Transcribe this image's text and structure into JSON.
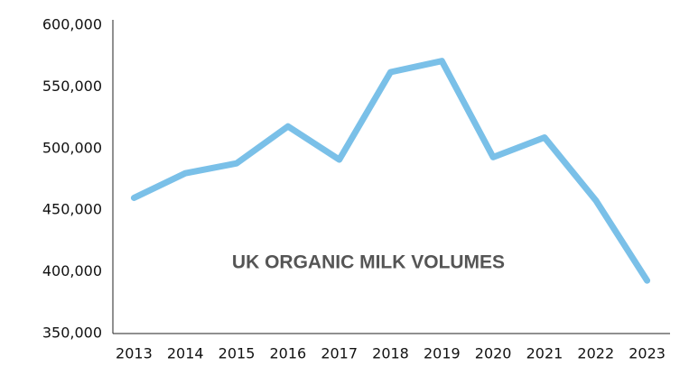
{
  "chart_data": {
    "type": "line",
    "title": "UK ORGANIC MILK VOLUMES",
    "categories": [
      "2013",
      "2014",
      "2015",
      "2016",
      "2017",
      "2018",
      "2019",
      "2020",
      "2021",
      "2022",
      "2023"
    ],
    "series": [
      {
        "color": "#7ac0e8",
        "values": [
          460000,
          480000,
          488000,
          518000,
          491000,
          562000,
          571000,
          493000,
          509000,
          458000,
          393000
        ]
      }
    ],
    "ylim": [
      350000,
      600000
    ],
    "yticks": [
      {
        "value": 350000,
        "label": "350,000"
      },
      {
        "value": 400000,
        "label": "400,000"
      },
      {
        "value": 450000,
        "label": "450,000"
      },
      {
        "value": 500000,
        "label": "500,000"
      },
      {
        "value": 550000,
        "label": "550,000"
      },
      {
        "value": 600000,
        "label": "600,000"
      }
    ],
    "grid": false
  }
}
